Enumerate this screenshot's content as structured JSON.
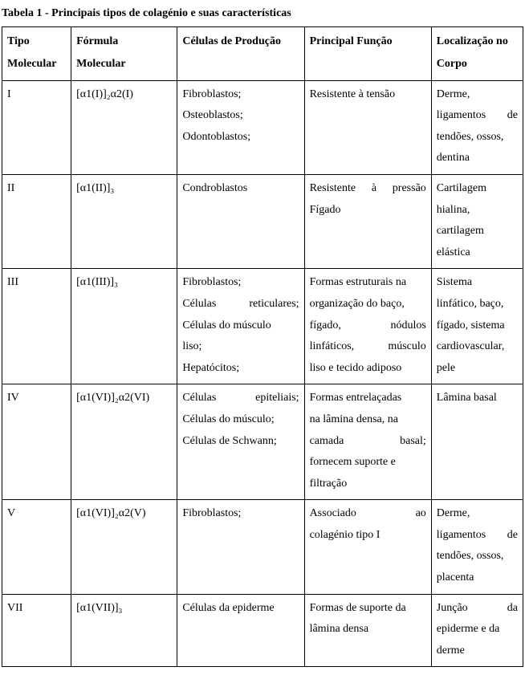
{
  "caption": "Tabela 1 - Principais tipos de colagénio e suas características",
  "headers": {
    "c0a": "Tipo",
    "c0b": "Molecular",
    "c1a": "Fórmula",
    "c1b": "Molecular",
    "c2": "Células de Produção",
    "c3": "Principal Função",
    "c4a": "Localização  no",
    "c4b": "Corpo"
  },
  "rows": {
    "r0": {
      "type": "I",
      "formula": "[α1(I)]₂α2(I)",
      "cells_l1": "Fibroblastos;",
      "cells_l2": "Osteoblastos;",
      "cells_l3": "Odontoblastos;",
      "func": "Resistente à tensão",
      "loc_l1": "Derme,",
      "loc_l2a": "ligamentos",
      "loc_l2b": "de",
      "loc_l3": "tendões,  ossos,",
      "loc_l4": "dentina"
    },
    "r1": {
      "type": "II",
      "formula": "[α1(II)]₃",
      "cells": "Condroblastos",
      "func_l1a": "Resistente",
      "func_l1b": "à",
      "func_l1c": "pressão",
      "func_l2": "Fígado",
      "loc_l1": "Cartilagem",
      "loc_l2": "hialina,",
      "loc_l3": "cartilagem",
      "loc_l4": "elástica"
    },
    "r2": {
      "type": "III",
      "formula": "[α1(III)]₃",
      "cells_l1": "Fibroblastos;",
      "cells_l2a": "Células",
      "cells_l2b": "reticulares;",
      "cells_l3": "Células  do  músculo",
      "cells_l4": "liso;",
      "cells_l5": "Hepatócitos;",
      "func_l1": "Formas estruturais na",
      "func_l2": "organização  do  baço,",
      "func_l3a": "fígado,",
      "func_l3b": "nódulos",
      "func_l4a": "linfáticos,",
      "func_l4b": "músculo",
      "func_l5": "liso e tecido adiposo",
      "loc_l1": "Sistema",
      "loc_l2": "linfático,   baço,",
      "loc_l3": "fígado,  sistema",
      "loc_l4": "cardiovascular,",
      "loc_l5": "pele"
    },
    "r3": {
      "type": "IV",
      "formula": "[α1(VI)]₂α2(VI)",
      "cells_l1a": "Células",
      "cells_l1b": "epiteliais;",
      "cells_l2": "Células  do  músculo;",
      "cells_l3": "Células de Schwann;",
      "func_l1": "Formas   entrelaçadas",
      "func_l2": "na  lâmina  densa,  na",
      "func_l3a": "camada",
      "func_l3b": "basal;",
      "func_l4": "fornecem   suporte   e",
      "func_l5": "filtração",
      "loc": "Lâmina basal"
    },
    "r4": {
      "type": "V",
      "formula": "[α1(VI)]₂α2(V)",
      "cells": "Fibroblastos;",
      "func_l1a": "Associado",
      "func_l1b": "ao",
      "func_l2": "colagénio tipo I",
      "loc_l1": "Derme,",
      "loc_l2a": "ligamentos",
      "loc_l2b": "de",
      "loc_l3": "tendões,  ossos,",
      "loc_l4": "placenta"
    },
    "r5": {
      "type": "VII",
      "formula": "[α1(VII)]₃",
      "cells": "Células da epiderme",
      "func_l1": "Formas de suporte da",
      "func_l2": "lâmina densa",
      "loc_l1a": "Junção",
      "loc_l1b": "da",
      "loc_l2": "epiderme  e  da",
      "loc_l3": "derme"
    }
  }
}
